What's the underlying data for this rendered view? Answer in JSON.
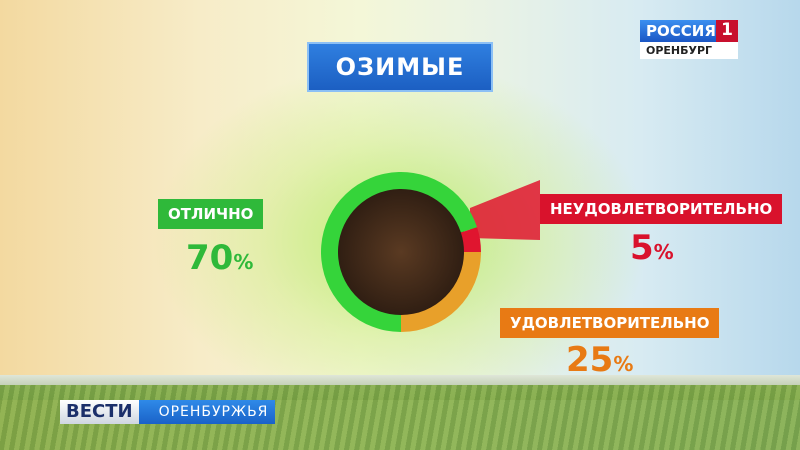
{
  "channel": {
    "name": "РОССИЯ",
    "number": "1",
    "region": "ОРЕНБУРГ"
  },
  "program": {
    "name": "ВЕСТИ",
    "region": "ОРЕНБУРЖЬЯ"
  },
  "chart_data": {
    "type": "pie",
    "title": "ОЗИМЫЕ",
    "slices": [
      {
        "label": "ОТЛИЧНО",
        "value": 70,
        "display": "70",
        "color": "#35d43a"
      },
      {
        "label": "НЕУДОВЛЕТВОРИТЕЛЬНО",
        "value": 5,
        "display": "5",
        "color": "#e0152f"
      },
      {
        "label": "УДОВЛЕТВОРИТЕЛЬНО",
        "value": 25,
        "display": "25",
        "color": "#e8a02a"
      }
    ],
    "unit": "%"
  }
}
